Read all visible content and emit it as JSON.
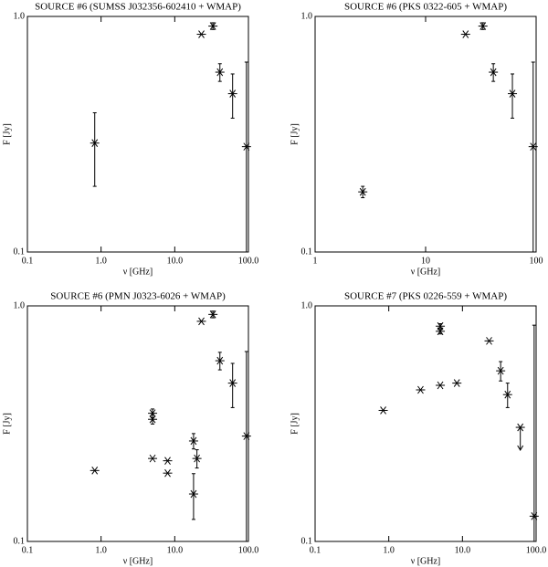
{
  "chart_data": [
    {
      "type": "scatter",
      "title": "SOURCE #6 (SUMSS J032356-602410 + WMAP)",
      "x_label": "ν [GHz]",
      "y_label": "F [Jy]",
      "log_x": true,
      "log_y": true,
      "marker": "asterisk",
      "color": "#000000",
      "xlim": [
        0.1,
        100
      ],
      "ylim": [
        0.1,
        1
      ],
      "xticks": [
        0.1,
        {
          "value": 1,
          "label": "1.0"
        },
        {
          "value": 10,
          "label": "10.0"
        },
        {
          "value": 100,
          "label": "100.0"
        }
      ],
      "yticks": [
        0.1,
        {
          "value": 1,
          "label": "1.0"
        }
      ],
      "series": [
        {
          "x": [
            0.82,
            23,
            33,
            41,
            61,
            94
          ],
          "values": [
            0.29,
            0.84,
            0.91,
            0.58,
            0.47,
            0.28
          ],
          "errors": [
            0.1,
            null,
            0.03,
            0.05,
            0.1,
            0.36
          ]
        }
      ]
    },
    {
      "type": "scatter",
      "title": "SOURCE #6 (PKS 0322-605 + WMAP)",
      "x_label": "ν [GHz]",
      "y_label": "F [Jy]",
      "log_x": true,
      "log_y": true,
      "marker": "asterisk",
      "color": "#000000",
      "xlim": [
        1,
        100
      ],
      "ylim": [
        0.1,
        1
      ],
      "xticks": [
        1,
        10,
        100
      ],
      "yticks": [
        0.1,
        {
          "value": 1,
          "label": "1.0"
        }
      ],
      "series": [
        {
          "x": [
            2.7,
            23,
            33,
            41,
            61,
            94
          ],
          "values": [
            0.18,
            0.84,
            0.91,
            0.58,
            0.47,
            0.28
          ],
          "errors": [
            0.01,
            null,
            0.03,
            0.05,
            0.1,
            0.36
          ]
        }
      ]
    },
    {
      "type": "scatter",
      "title": "SOURCE #6 (PMN J0323-6026 + WMAP)",
      "x_label": "ν [GHz]",
      "y_label": "F [Jy]",
      "log_x": true,
      "log_y": true,
      "marker": "asterisk",
      "color": "#000000",
      "xlim": [
        0.1,
        100
      ],
      "ylim": [
        0.1,
        1
      ],
      "xticks": [
        0.1,
        {
          "value": 1,
          "label": "1.0"
        },
        {
          "value": 10,
          "label": "10.0"
        },
        {
          "value": 100,
          "label": "100.0"
        }
      ],
      "yticks": [
        0.1,
        {
          "value": 1,
          "label": "1.0"
        }
      ],
      "series": [
        {
          "x": [
            0.82,
            5,
            5,
            5,
            8,
            8,
            18,
            20,
            18,
            23,
            33,
            41,
            61,
            94
          ],
          "values": [
            0.2,
            0.35,
            0.33,
            0.225,
            0.22,
            0.195,
            0.267,
            0.225,
            0.159,
            0.86,
            0.92,
            0.585,
            0.47,
            0.28
          ],
          "errors": [
            null,
            0.015,
            0.015,
            null,
            null,
            null,
            0.02,
            0.02,
            0.035,
            null,
            0.03,
            0.05,
            0.1,
            0.36
          ]
        }
      ]
    },
    {
      "type": "scatter",
      "title": "SOURCE #7 (PKS 0226-559 + WMAP)",
      "x_label": "ν [GHz]",
      "y_label": "F [Jy]",
      "log_x": true,
      "log_y": true,
      "marker": "asterisk",
      "color": "#000000",
      "xlim": [
        0.1,
        100
      ],
      "ylim": [
        0.1,
        1
      ],
      "xticks": [
        0.1,
        {
          "value": 1,
          "label": "1.0"
        },
        {
          "value": 10,
          "label": "10.0"
        },
        {
          "value": 100,
          "label": "100.0"
        }
      ],
      "yticks": [
        0.1,
        {
          "value": 1,
          "label": "1.0"
        }
      ],
      "series": [
        {
          "x": [
            0.84,
            2.7,
            5,
            5,
            5,
            8.4,
            23,
            33,
            41,
            61,
            94
          ],
          "values": [
            0.36,
            0.44,
            0.46,
            0.82,
            0.78,
            0.47,
            0.71,
            0.53,
            0.42,
            0.305,
            0.128
          ],
          "errors": [
            null,
            null,
            null,
            0.02,
            0.02,
            null,
            null,
            0.05,
            0.05,
            null,
            0.7
          ],
          "upper_limit": [
            false,
            false,
            false,
            false,
            false,
            false,
            false,
            false,
            false,
            true,
            false
          ]
        }
      ]
    }
  ]
}
